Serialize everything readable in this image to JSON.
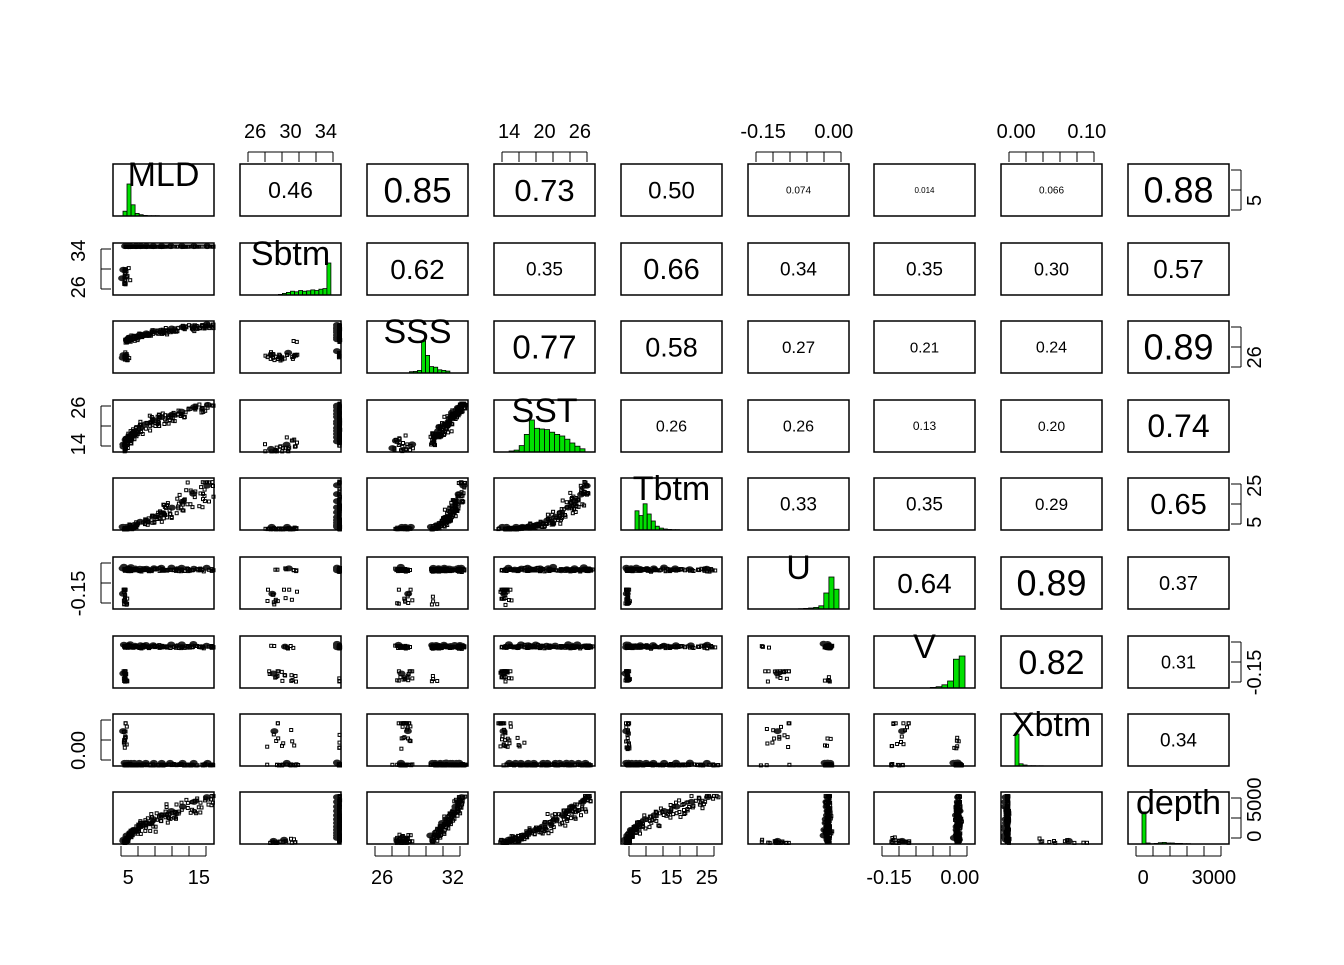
{
  "chart_data": {
    "type": "scatter",
    "matrix_kind": "pairs-panels",
    "variables": [
      "MLD",
      "Sbtm",
      "SSS",
      "SST",
      "Tbtm",
      "U",
      "V",
      "Xbtm",
      "depth"
    ],
    "histogram_color": "#00e000",
    "correlations": [
      [
        "",
        "0.46",
        "0.85",
        "0.73",
        "0.50",
        "0.074",
        "0.014",
        "0.066",
        "0.88"
      ],
      [
        "",
        "",
        "0.62",
        "0.35",
        "0.66",
        "0.34",
        "0.35",
        "0.30",
        "0.57"
      ],
      [
        "",
        "",
        "",
        "0.77",
        "0.58",
        "0.27",
        "0.21",
        "0.24",
        "0.89"
      ],
      [
        "",
        "",
        "",
        "",
        "0.26",
        "0.26",
        "0.13",
        "0.20",
        "0.74"
      ],
      [
        "",
        "",
        "",
        "",
        "",
        "0.33",
        "0.35",
        "0.29",
        "0.65"
      ],
      [
        "",
        "",
        "",
        "",
        "",
        "",
        "0.64",
        "0.89",
        "0.37"
      ],
      [
        "",
        "",
        "",
        "",
        "",
        "",
        "",
        "0.82",
        "0.31"
      ],
      [
        "",
        "",
        "",
        "",
        "",
        "",
        "",
        "",
        "0.34"
      ]
    ],
    "top_axis": [
      {
        "col": 1,
        "ticks": [
          "26",
          "30",
          "34"
        ]
      },
      {
        "col": 3,
        "ticks": [
          "14",
          "20",
          "26"
        ]
      },
      {
        "col": 5,
        "ticks": [
          "-0.15",
          "0.00"
        ]
      },
      {
        "col": 7,
        "ticks": [
          "0.00",
          "0.10"
        ]
      }
    ],
    "bottom_axis": [
      {
        "col": 0,
        "ticks": [
          "5",
          "15"
        ]
      },
      {
        "col": 2,
        "ticks": [
          "26",
          "32"
        ]
      },
      {
        "col": 4,
        "ticks": [
          "5",
          "15",
          "25"
        ]
      },
      {
        "col": 6,
        "ticks": [
          "-0.15",
          "0.00"
        ]
      },
      {
        "col": 8,
        "ticks": [
          "0",
          "3000"
        ]
      }
    ],
    "left_axis": [
      {
        "row": 1,
        "ticks": [
          "26",
          "34"
        ]
      },
      {
        "row": 3,
        "ticks": [
          "14",
          "26"
        ]
      },
      {
        "row": 5,
        "ticks": [
          "-0.15"
        ]
      },
      {
        "row": 7,
        "ticks": [
          "0.00"
        ]
      }
    ],
    "right_axis": [
      {
        "row": 0,
        "ticks": [
          "5"
        ]
      },
      {
        "row": 2,
        "ticks": [
          "26"
        ]
      },
      {
        "row": 4,
        "ticks": [
          "5",
          "25"
        ]
      },
      {
        "row": 6,
        "ticks": [
          "-0.15"
        ]
      },
      {
        "row": 8,
        "ticks": [
          "0",
          "5000"
        ]
      }
    ],
    "histograms": [
      [
        0.15,
        1.0,
        0.35,
        0.08,
        0.04,
        0.02,
        0.01,
        0.01,
        0.01,
        0,
        0,
        0,
        0,
        0,
        0,
        0,
        0,
        0,
        0,
        0
      ],
      [
        0,
        0,
        0,
        0,
        0,
        0,
        0,
        0.02,
        0.05,
        0.08,
        0.12,
        0.1,
        0.14,
        0.12,
        0.13,
        0.16,
        0.14,
        0.18,
        0.2,
        1.0
      ],
      [
        0,
        0,
        0,
        0,
        0,
        0,
        0,
        0,
        0.04,
        0.05,
        0.08,
        1.0,
        0.55,
        0.2,
        0.18,
        0.1,
        0.08,
        0.06,
        0,
        0
      ],
      [
        0,
        0.03,
        0.06,
        0.2,
        0.55,
        1.0,
        0.74,
        0.72,
        0.7,
        0.62,
        0.55,
        0.5,
        0.4,
        0.28,
        0.18,
        0.1
      ],
      [
        0,
        0.6,
        0.45,
        0.82,
        0.5,
        0.28,
        0.12,
        0.06,
        0.03,
        0.02,
        0.01,
        0.01,
        0,
        0,
        0,
        0,
        0,
        0,
        0,
        0
      ],
      [
        0,
        0,
        0,
        0,
        0,
        0,
        0,
        0,
        0.01,
        0.02,
        0.03,
        0.05,
        0.1,
        0.5,
        1.0,
        0.62
      ],
      [
        0,
        0,
        0,
        0,
        0,
        0,
        0,
        0,
        0.02,
        0.04,
        0.1,
        0.22,
        0.9,
        1.0
      ],
      [
        0,
        1.0,
        0.07,
        0.03,
        0.01,
        0.01,
        0.005,
        0.005,
        0,
        0,
        0,
        0,
        0,
        0,
        0,
        0,
        0,
        0,
        0,
        0
      ],
      [
        0,
        1.0,
        0.03,
        0.01,
        0.02,
        0.04,
        0.05,
        0.03,
        0.03,
        0.02,
        0.02,
        0.01,
        0.01,
        0,
        0,
        0,
        0,
        0,
        0,
        0
      ]
    ]
  }
}
